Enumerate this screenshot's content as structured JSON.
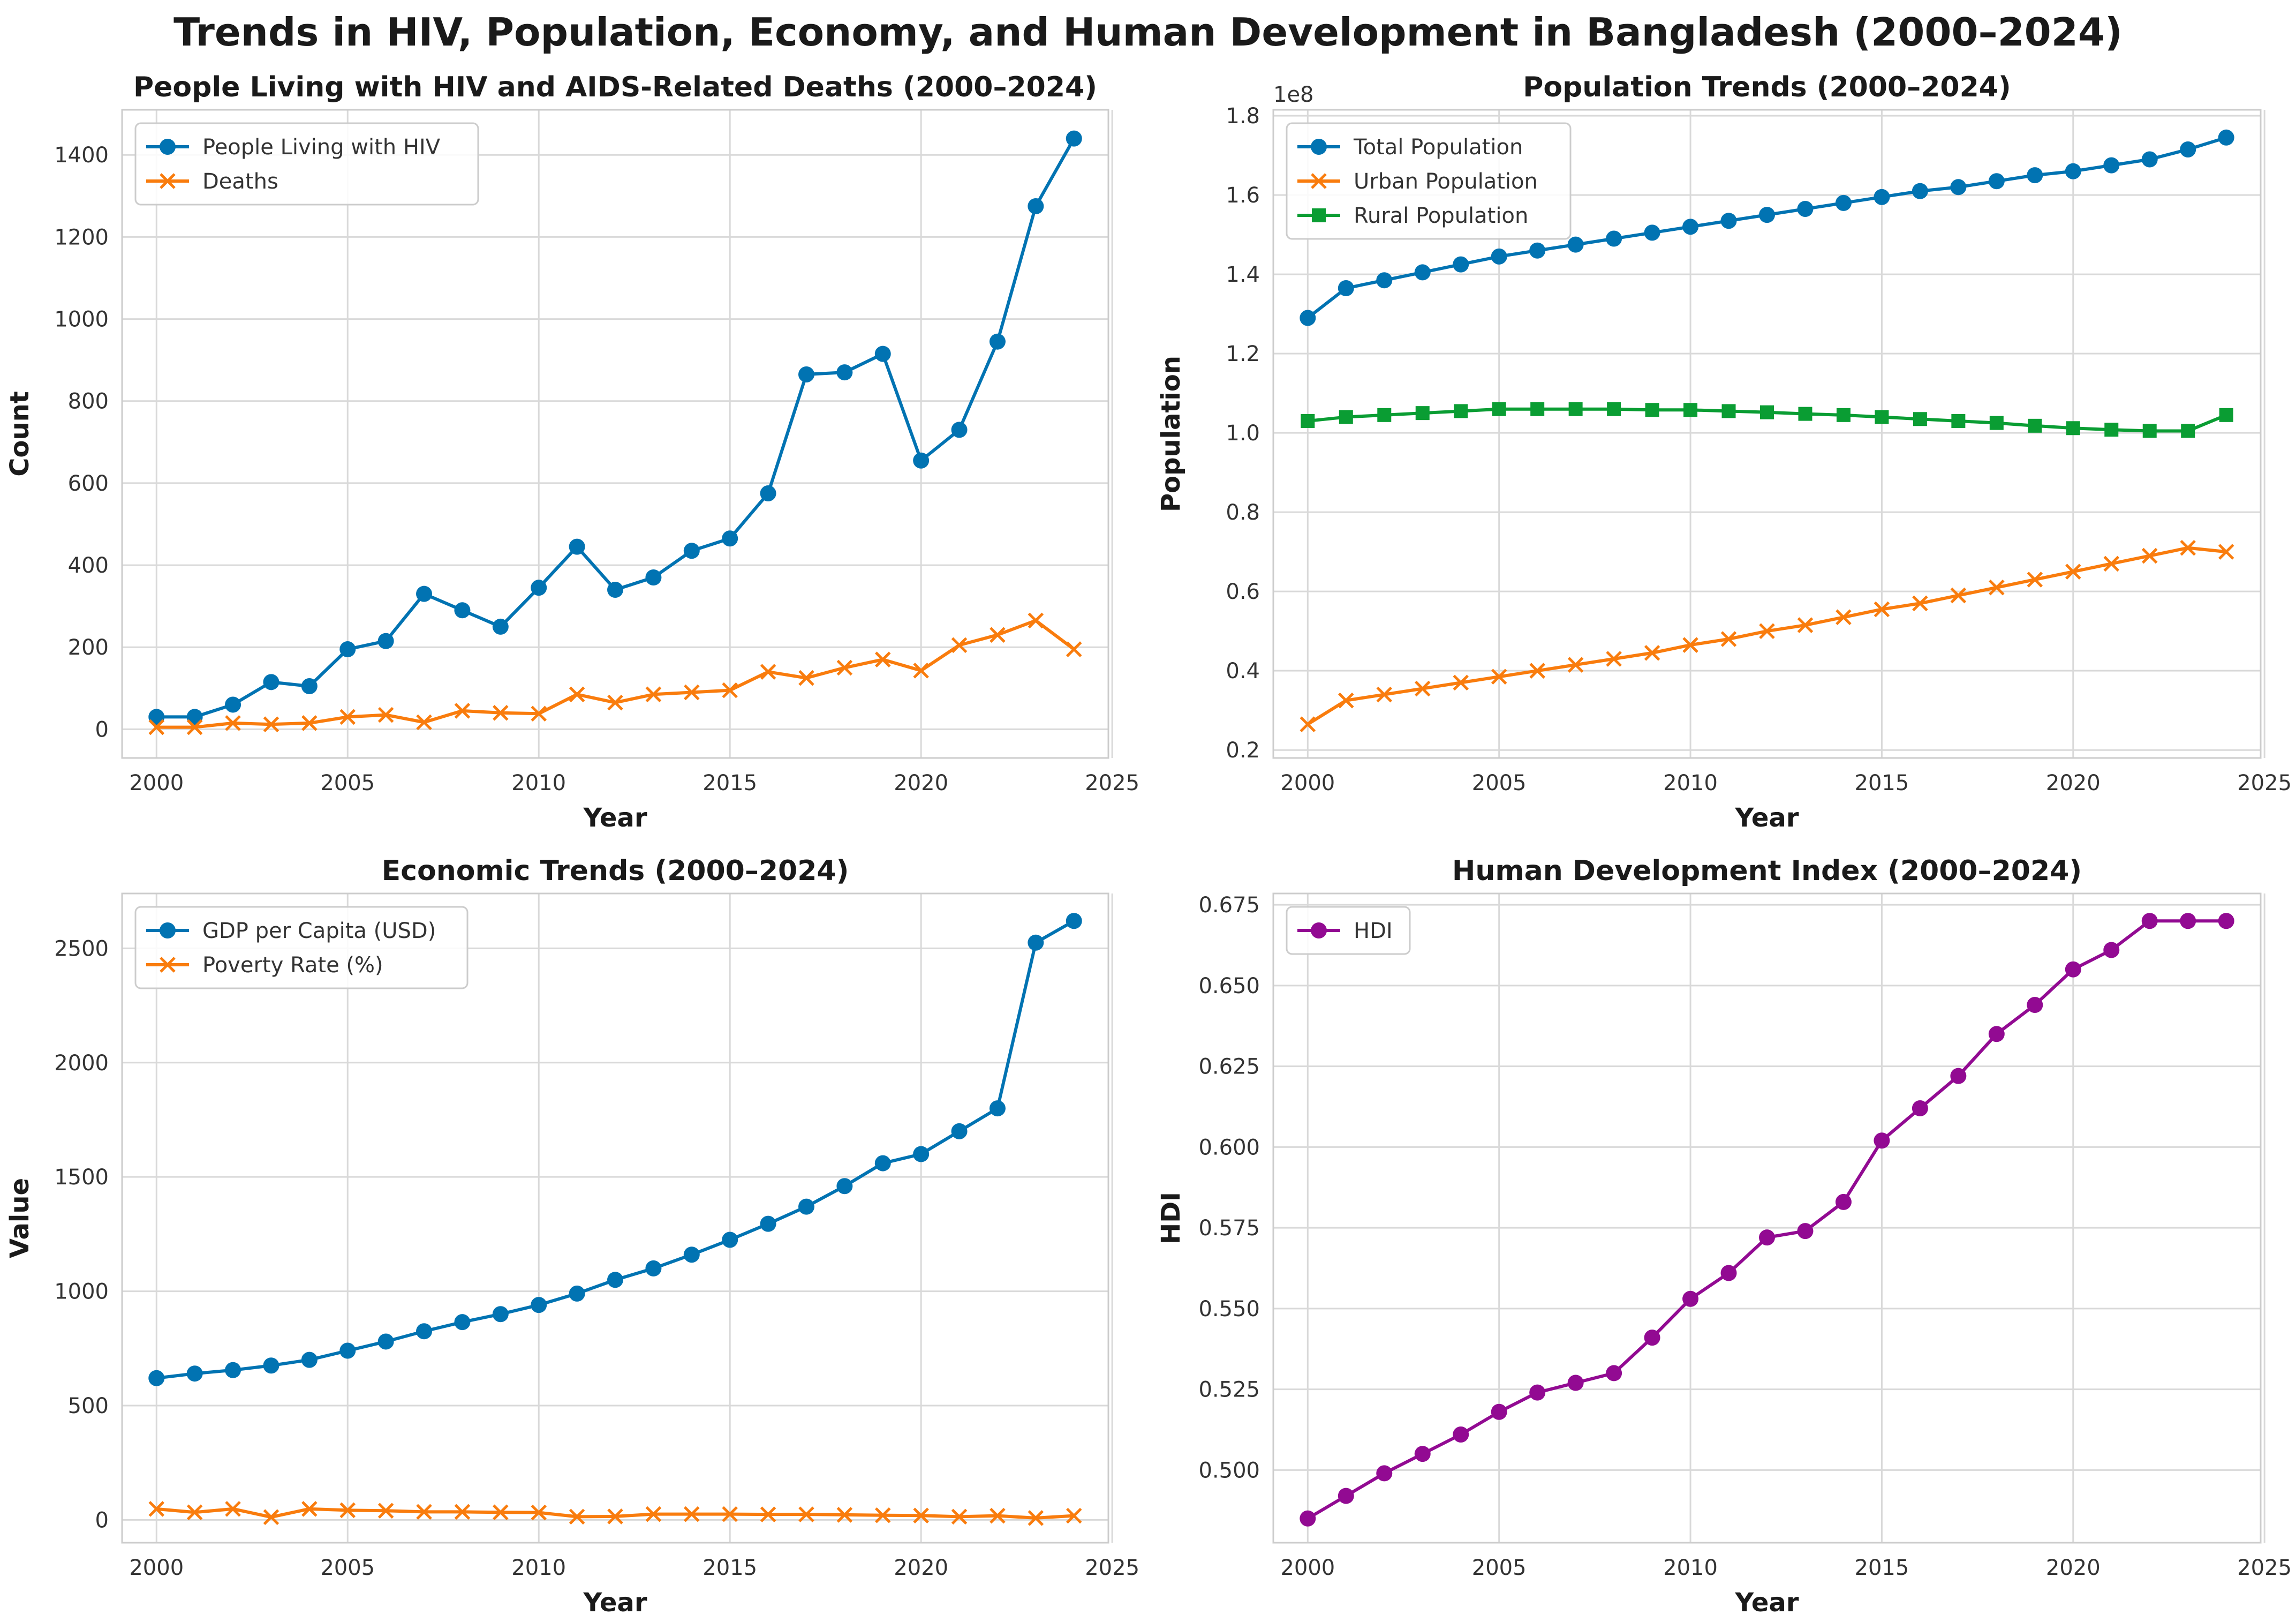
{
  "figure_title": "Trends in HIV, Population, Economy, and Human Development in Bangladesh (2000–2024)",
  "chart_data": [
    {
      "type": "line",
      "title": "People Living with HIV and AIDS-Related Deaths (2000–2024)",
      "xlabel": "Year",
      "ylabel": "Count",
      "x": [
        2000,
        2001,
        2002,
        2003,
        2004,
        2005,
        2006,
        2007,
        2008,
        2009,
        2010,
        2011,
        2012,
        2013,
        2014,
        2015,
        2016,
        2017,
        2018,
        2019,
        2020,
        2021,
        2022,
        2023,
        2024
      ],
      "xlim": [
        1999.1,
        2024.9
      ],
      "ylim": [
        -70,
        1510
      ],
      "xticks": [
        2000,
        2005,
        2010,
        2015,
        2020,
        2025
      ],
      "yticks": [
        0,
        200,
        400,
        600,
        800,
        1000,
        1200,
        1400
      ],
      "yticklabels": [
        "0",
        "200",
        "400",
        "600",
        "800",
        "1000",
        "1200",
        "1400"
      ],
      "legend": "top-left",
      "series": [
        {
          "name": "People Living with HIV",
          "color": "#0173b2",
          "marker": "circle",
          "values": [
            30,
            30,
            60,
            115,
            105,
            195,
            215,
            330,
            290,
            250,
            345,
            445,
            340,
            370,
            435,
            465,
            575,
            865,
            870,
            915,
            655,
            730,
            945,
            1275,
            1440
          ]
        },
        {
          "name": "Deaths",
          "color": "#f97c0d",
          "marker": "x",
          "values": [
            5,
            5,
            15,
            12,
            15,
            30,
            35,
            17,
            45,
            40,
            38,
            85,
            65,
            85,
            90,
            95,
            140,
            125,
            150,
            170,
            143,
            205,
            230,
            265,
            195
          ]
        }
      ]
    },
    {
      "type": "line",
      "title": "Population Trends (2000–2024)",
      "xlabel": "Year",
      "ylabel": "Population",
      "offset_text": "1e8",
      "x": [
        2000,
        2001,
        2002,
        2003,
        2004,
        2005,
        2006,
        2007,
        2008,
        2009,
        2010,
        2011,
        2012,
        2013,
        2014,
        2015,
        2016,
        2017,
        2018,
        2019,
        2020,
        2021,
        2022,
        2023,
        2024
      ],
      "xlim": [
        1999.1,
        2024.9
      ],
      "ylim": [
        0.18,
        1.815
      ],
      "xticks": [
        2000,
        2005,
        2010,
        2015,
        2020,
        2025
      ],
      "yticks": [
        0.2,
        0.4,
        0.6,
        0.8,
        1.0,
        1.2,
        1.4,
        1.6,
        1.8
      ],
      "yticklabels": [
        "0.2",
        "0.4",
        "0.6",
        "0.8",
        "1.0",
        "1.2",
        "1.4",
        "1.6",
        "1.8"
      ],
      "legend": "top-left",
      "series": [
        {
          "name": "Total Population",
          "color": "#0173b2",
          "marker": "circle",
          "values": [
            1.29,
            1.365,
            1.385,
            1.405,
            1.425,
            1.445,
            1.46,
            1.475,
            1.49,
            1.505,
            1.52,
            1.535,
            1.55,
            1.565,
            1.58,
            1.595,
            1.61,
            1.62,
            1.635,
            1.65,
            1.66,
            1.675,
            1.69,
            1.715,
            1.745
          ]
        },
        {
          "name": "Urban Population",
          "color": "#f97c0d",
          "marker": "x",
          "values": [
            0.265,
            0.325,
            0.34,
            0.355,
            0.37,
            0.385,
            0.4,
            0.415,
            0.43,
            0.445,
            0.465,
            0.48,
            0.5,
            0.515,
            0.535,
            0.555,
            0.57,
            0.59,
            0.61,
            0.63,
            0.65,
            0.67,
            0.69,
            0.71,
            0.7
          ]
        },
        {
          "name": "Rural Population",
          "color": "#0a9d33",
          "marker": "square",
          "values": [
            1.03,
            1.04,
            1.045,
            1.05,
            1.055,
            1.06,
            1.06,
            1.06,
            1.06,
            1.058,
            1.058,
            1.055,
            1.052,
            1.048,
            1.045,
            1.04,
            1.035,
            1.03,
            1.025,
            1.018,
            1.012,
            1.008,
            1.005,
            1.005,
            1.045
          ]
        }
      ]
    },
    {
      "type": "line",
      "title": "Economic Trends (2000–2024)",
      "xlabel": "Year",
      "ylabel": "Value",
      "x": [
        2000,
        2001,
        2002,
        2003,
        2004,
        2005,
        2006,
        2007,
        2008,
        2009,
        2010,
        2011,
        2012,
        2013,
        2014,
        2015,
        2016,
        2017,
        2018,
        2019,
        2020,
        2021,
        2022,
        2023,
        2024
      ],
      "xlim": [
        1999.1,
        2024.9
      ],
      "ylim": [
        -100,
        2740
      ],
      "xticks": [
        2000,
        2005,
        2010,
        2015,
        2020,
        2025
      ],
      "yticks": [
        0,
        500,
        1000,
        1500,
        2000,
        2500
      ],
      "yticklabels": [
        "0",
        "500",
        "1000",
        "1500",
        "2000",
        "2500"
      ],
      "legend": "top-left",
      "series": [
        {
          "name": "GDP per Capita (USD)",
          "color": "#0173b2",
          "marker": "circle",
          "values": [
            620,
            640,
            655,
            675,
            700,
            740,
            780,
            825,
            865,
            900,
            940,
            990,
            1050,
            1100,
            1160,
            1225,
            1295,
            1370,
            1460,
            1560,
            1600,
            1700,
            1800,
            2525,
            2620
          ]
        },
        {
          "name": "Poverty Rate (%)",
          "color": "#f97c0d",
          "marker": "x",
          "values": [
            48,
            33,
            48,
            12,
            48,
            42,
            40,
            35,
            35,
            33,
            32,
            14,
            15,
            25,
            25,
            25,
            24,
            24,
            22,
            20,
            19,
            14,
            18,
            8,
            18
          ]
        }
      ]
    },
    {
      "type": "line",
      "title": "Human Development Index (2000–2024)",
      "xlabel": "Year",
      "ylabel": "HDI",
      "x": [
        2000,
        2001,
        2002,
        2003,
        2004,
        2005,
        2006,
        2007,
        2008,
        2009,
        2010,
        2011,
        2012,
        2013,
        2014,
        2015,
        2016,
        2017,
        2018,
        2019,
        2020,
        2021,
        2022,
        2023,
        2024
      ],
      "xlim": [
        1999.1,
        2024.9
      ],
      "ylim": [
        0.4775,
        0.6785
      ],
      "xticks": [
        2000,
        2005,
        2010,
        2015,
        2020,
        2025
      ],
      "yticks": [
        0.5,
        0.525,
        0.55,
        0.575,
        0.6,
        0.625,
        0.65,
        0.675
      ],
      "yticklabels": [
        "0.500",
        "0.525",
        "0.550",
        "0.575",
        "0.600",
        "0.625",
        "0.650",
        "0.675"
      ],
      "legend": "top-left",
      "series": [
        {
          "name": "HDI",
          "color": "#920a92",
          "marker": "circle",
          "values": [
            0.485,
            0.492,
            0.499,
            0.505,
            0.511,
            0.518,
            0.524,
            0.527,
            0.53,
            0.541,
            0.553,
            0.561,
            0.572,
            0.574,
            0.583,
            0.602,
            0.612,
            0.622,
            0.635,
            0.644,
            0.655,
            0.661,
            0.67,
            0.67,
            0.67
          ]
        }
      ]
    }
  ]
}
